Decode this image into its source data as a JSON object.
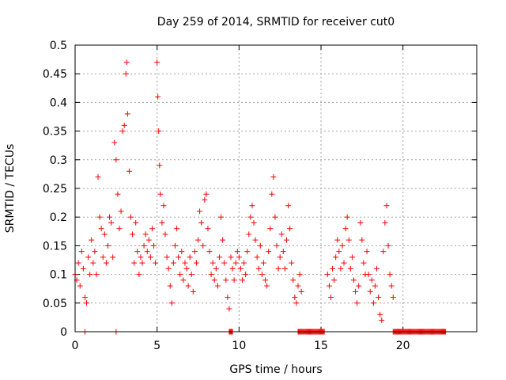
{
  "chart_data": {
    "type": "scatter",
    "title": "Day 259 of 2014, SRMTID for receiver cut0",
    "xlabel": "GPS time / hours",
    "ylabel": "SRMTID / TECUs",
    "xlim": [
      0,
      24.5
    ],
    "ylim": [
      0,
      0.5
    ],
    "xticks": [
      0,
      5,
      10,
      15,
      20
    ],
    "xtick_labels": [
      "0",
      "5",
      "10",
      "15",
      "20"
    ],
    "yticks": [
      0,
      0.05,
      0.1,
      0.15,
      0.2,
      0.25,
      0.3,
      0.35,
      0.4,
      0.45,
      0.5
    ],
    "ytick_labels": [
      "0",
      "0.05",
      "0.1",
      "0.15",
      "0.2",
      "0.25",
      "0.3",
      "0.35",
      "0.4",
      "0.45",
      "0.5"
    ],
    "grid": true,
    "marker": "+",
    "color": "#ff0000",
    "series": [
      {
        "name": "SRMTID",
        "points": [
          [
            0.0,
            0.1
          ],
          [
            0.1,
            0.09
          ],
          [
            0.2,
            0.12
          ],
          [
            0.3,
            0.08
          ],
          [
            0.4,
            0.14
          ],
          [
            0.5,
            0.11
          ],
          [
            0.6,
            0.06
          ],
          [
            0.7,
            0.05
          ],
          [
            0.8,
            0.13
          ],
          [
            0.9,
            0.1
          ],
          [
            1.0,
            0.16
          ],
          [
            1.1,
            0.12
          ],
          [
            1.2,
            0.14
          ],
          [
            1.3,
            0.1
          ],
          [
            1.4,
            0.27
          ],
          [
            1.5,
            0.2
          ],
          [
            1.6,
            0.18
          ],
          [
            1.7,
            0.13
          ],
          [
            1.8,
            0.17
          ],
          [
            1.9,
            0.12
          ],
          [
            2.0,
            0.15
          ],
          [
            2.1,
            0.2
          ],
          [
            2.2,
            0.19
          ],
          [
            2.3,
            0.13
          ],
          [
            2.4,
            0.33
          ],
          [
            2.5,
            0.3
          ],
          [
            2.6,
            0.24
          ],
          [
            2.7,
            0.18
          ],
          [
            2.8,
            0.21
          ],
          [
            2.9,
            0.35
          ],
          [
            3.0,
            0.36
          ],
          [
            3.1,
            0.45
          ],
          [
            3.15,
            0.47
          ],
          [
            3.2,
            0.38
          ],
          [
            3.3,
            0.28
          ],
          [
            3.4,
            0.2
          ],
          [
            3.5,
            0.17
          ],
          [
            3.6,
            0.12
          ],
          [
            3.7,
            0.19
          ],
          [
            3.8,
            0.14
          ],
          [
            3.9,
            0.1
          ],
          [
            4.0,
            0.13
          ],
          [
            4.1,
            0.12
          ],
          [
            4.2,
            0.15
          ],
          [
            4.3,
            0.17
          ],
          [
            4.4,
            0.14
          ],
          [
            4.5,
            0.16
          ],
          [
            4.6,
            0.13
          ],
          [
            4.7,
            0.18
          ],
          [
            4.8,
            0.15
          ],
          [
            4.9,
            0.12
          ],
          [
            5.0,
            0.47
          ],
          [
            5.05,
            0.41
          ],
          [
            5.1,
            0.35
          ],
          [
            5.15,
            0.29
          ],
          [
            5.2,
            0.24
          ],
          [
            5.3,
            0.19
          ],
          [
            5.4,
            0.22
          ],
          [
            5.5,
            0.17
          ],
          [
            5.6,
            0.13
          ],
          [
            5.7,
            0.11
          ],
          [
            5.8,
            0.08
          ],
          [
            5.9,
            0.05
          ],
          [
            6.0,
            0.12
          ],
          [
            6.1,
            0.15
          ],
          [
            6.2,
            0.18
          ],
          [
            6.3,
            0.13
          ],
          [
            6.4,
            0.1
          ],
          [
            6.5,
            0.14
          ],
          [
            6.6,
            0.09
          ],
          [
            6.7,
            0.12
          ],
          [
            6.8,
            0.11
          ],
          [
            6.9,
            0.08
          ],
          [
            7.0,
            0.13
          ],
          [
            7.1,
            0.1
          ],
          [
            7.2,
            0.07
          ],
          [
            7.3,
            0.14
          ],
          [
            7.4,
            0.12
          ],
          [
            7.5,
            0.16
          ],
          [
            7.6,
            0.21
          ],
          [
            7.7,
            0.19
          ],
          [
            7.8,
            0.15
          ],
          [
            7.9,
            0.23
          ],
          [
            8.0,
            0.24
          ],
          [
            8.1,
            0.18
          ],
          [
            8.2,
            0.14
          ],
          [
            8.3,
            0.1
          ],
          [
            8.4,
            0.12
          ],
          [
            8.5,
            0.09
          ],
          [
            8.6,
            0.11
          ],
          [
            8.7,
            0.08
          ],
          [
            8.8,
            0.13
          ],
          [
            8.9,
            0.2
          ],
          [
            9.0,
            0.16
          ],
          [
            9.1,
            0.12
          ],
          [
            9.2,
            0.09
          ],
          [
            9.3,
            0.06
          ],
          [
            9.4,
            0.04
          ],
          [
            9.5,
            0.13
          ],
          [
            9.6,
            0.11
          ],
          [
            9.7,
            0.09
          ],
          [
            9.8,
            0.12
          ],
          [
            9.9,
            0.14
          ],
          [
            10.0,
            0.13
          ],
          [
            10.1,
            0.11
          ],
          [
            10.2,
            0.09
          ],
          [
            10.3,
            0.12
          ],
          [
            10.4,
            0.1
          ],
          [
            10.5,
            0.14
          ],
          [
            10.6,
            0.17
          ],
          [
            10.7,
            0.2
          ],
          [
            10.8,
            0.22
          ],
          [
            10.9,
            0.19
          ],
          [
            11.0,
            0.16
          ],
          [
            11.1,
            0.13
          ],
          [
            11.2,
            0.11
          ],
          [
            11.3,
            0.15
          ],
          [
            11.4,
            0.1
          ],
          [
            11.5,
            0.12
          ],
          [
            11.6,
            0.09
          ],
          [
            11.7,
            0.08
          ],
          [
            11.8,
            0.14
          ],
          [
            11.9,
            0.18
          ],
          [
            12.0,
            0.24
          ],
          [
            12.1,
            0.27
          ],
          [
            12.2,
            0.2
          ],
          [
            12.3,
            0.15
          ],
          [
            12.4,
            0.11
          ],
          [
            12.5,
            0.13
          ],
          [
            12.6,
            0.17
          ],
          [
            12.7,
            0.14
          ],
          [
            12.8,
            0.11
          ],
          [
            12.9,
            0.16
          ],
          [
            13.0,
            0.22
          ],
          [
            13.1,
            0.18
          ],
          [
            13.2,
            0.12
          ],
          [
            13.3,
            0.09
          ],
          [
            13.4,
            0.06
          ],
          [
            13.5,
            0.05
          ],
          [
            13.6,
            0.08
          ],
          [
            13.7,
            0.1
          ],
          [
            13.8,
            0.07
          ],
          [
            15.4,
            0.1
          ],
          [
            15.5,
            0.08
          ],
          [
            15.6,
            0.06
          ],
          [
            15.7,
            0.11
          ],
          [
            15.8,
            0.09
          ],
          [
            15.9,
            0.13
          ],
          [
            16.0,
            0.16
          ],
          [
            16.1,
            0.14
          ],
          [
            16.2,
            0.11
          ],
          [
            16.3,
            0.15
          ],
          [
            16.4,
            0.12
          ],
          [
            16.5,
            0.18
          ],
          [
            16.6,
            0.2
          ],
          [
            16.7,
            0.16
          ],
          [
            16.8,
            0.11
          ],
          [
            16.9,
            0.13
          ],
          [
            17.0,
            0.09
          ],
          [
            17.1,
            0.07
          ],
          [
            17.2,
            0.05
          ],
          [
            17.3,
            0.08
          ],
          [
            17.4,
            0.19
          ],
          [
            17.5,
            0.16
          ],
          [
            17.6,
            0.12
          ],
          [
            17.7,
            0.1
          ],
          [
            17.8,
            0.14
          ],
          [
            17.9,
            0.1
          ],
          [
            18.0,
            0.07
          ],
          [
            18.1,
            0.09
          ],
          [
            18.2,
            0.05
          ],
          [
            18.3,
            0.08
          ],
          [
            18.4,
            0.11
          ],
          [
            18.5,
            0.06
          ],
          [
            18.6,
            0.03
          ],
          [
            18.7,
            0.02
          ],
          [
            18.8,
            0.14
          ],
          [
            18.9,
            0.19
          ],
          [
            19.0,
            0.22
          ],
          [
            19.1,
            0.15
          ],
          [
            19.2,
            0.1
          ],
          [
            19.3,
            0.08
          ],
          [
            19.4,
            0.06
          ]
        ],
        "zero_segments": [
          [
            0.6,
            0.6
          ],
          [
            2.5,
            2.5
          ],
          [
            9.4,
            9.6
          ],
          [
            13.6,
            15.2
          ],
          [
            19.4,
            22.6
          ]
        ]
      }
    ]
  }
}
